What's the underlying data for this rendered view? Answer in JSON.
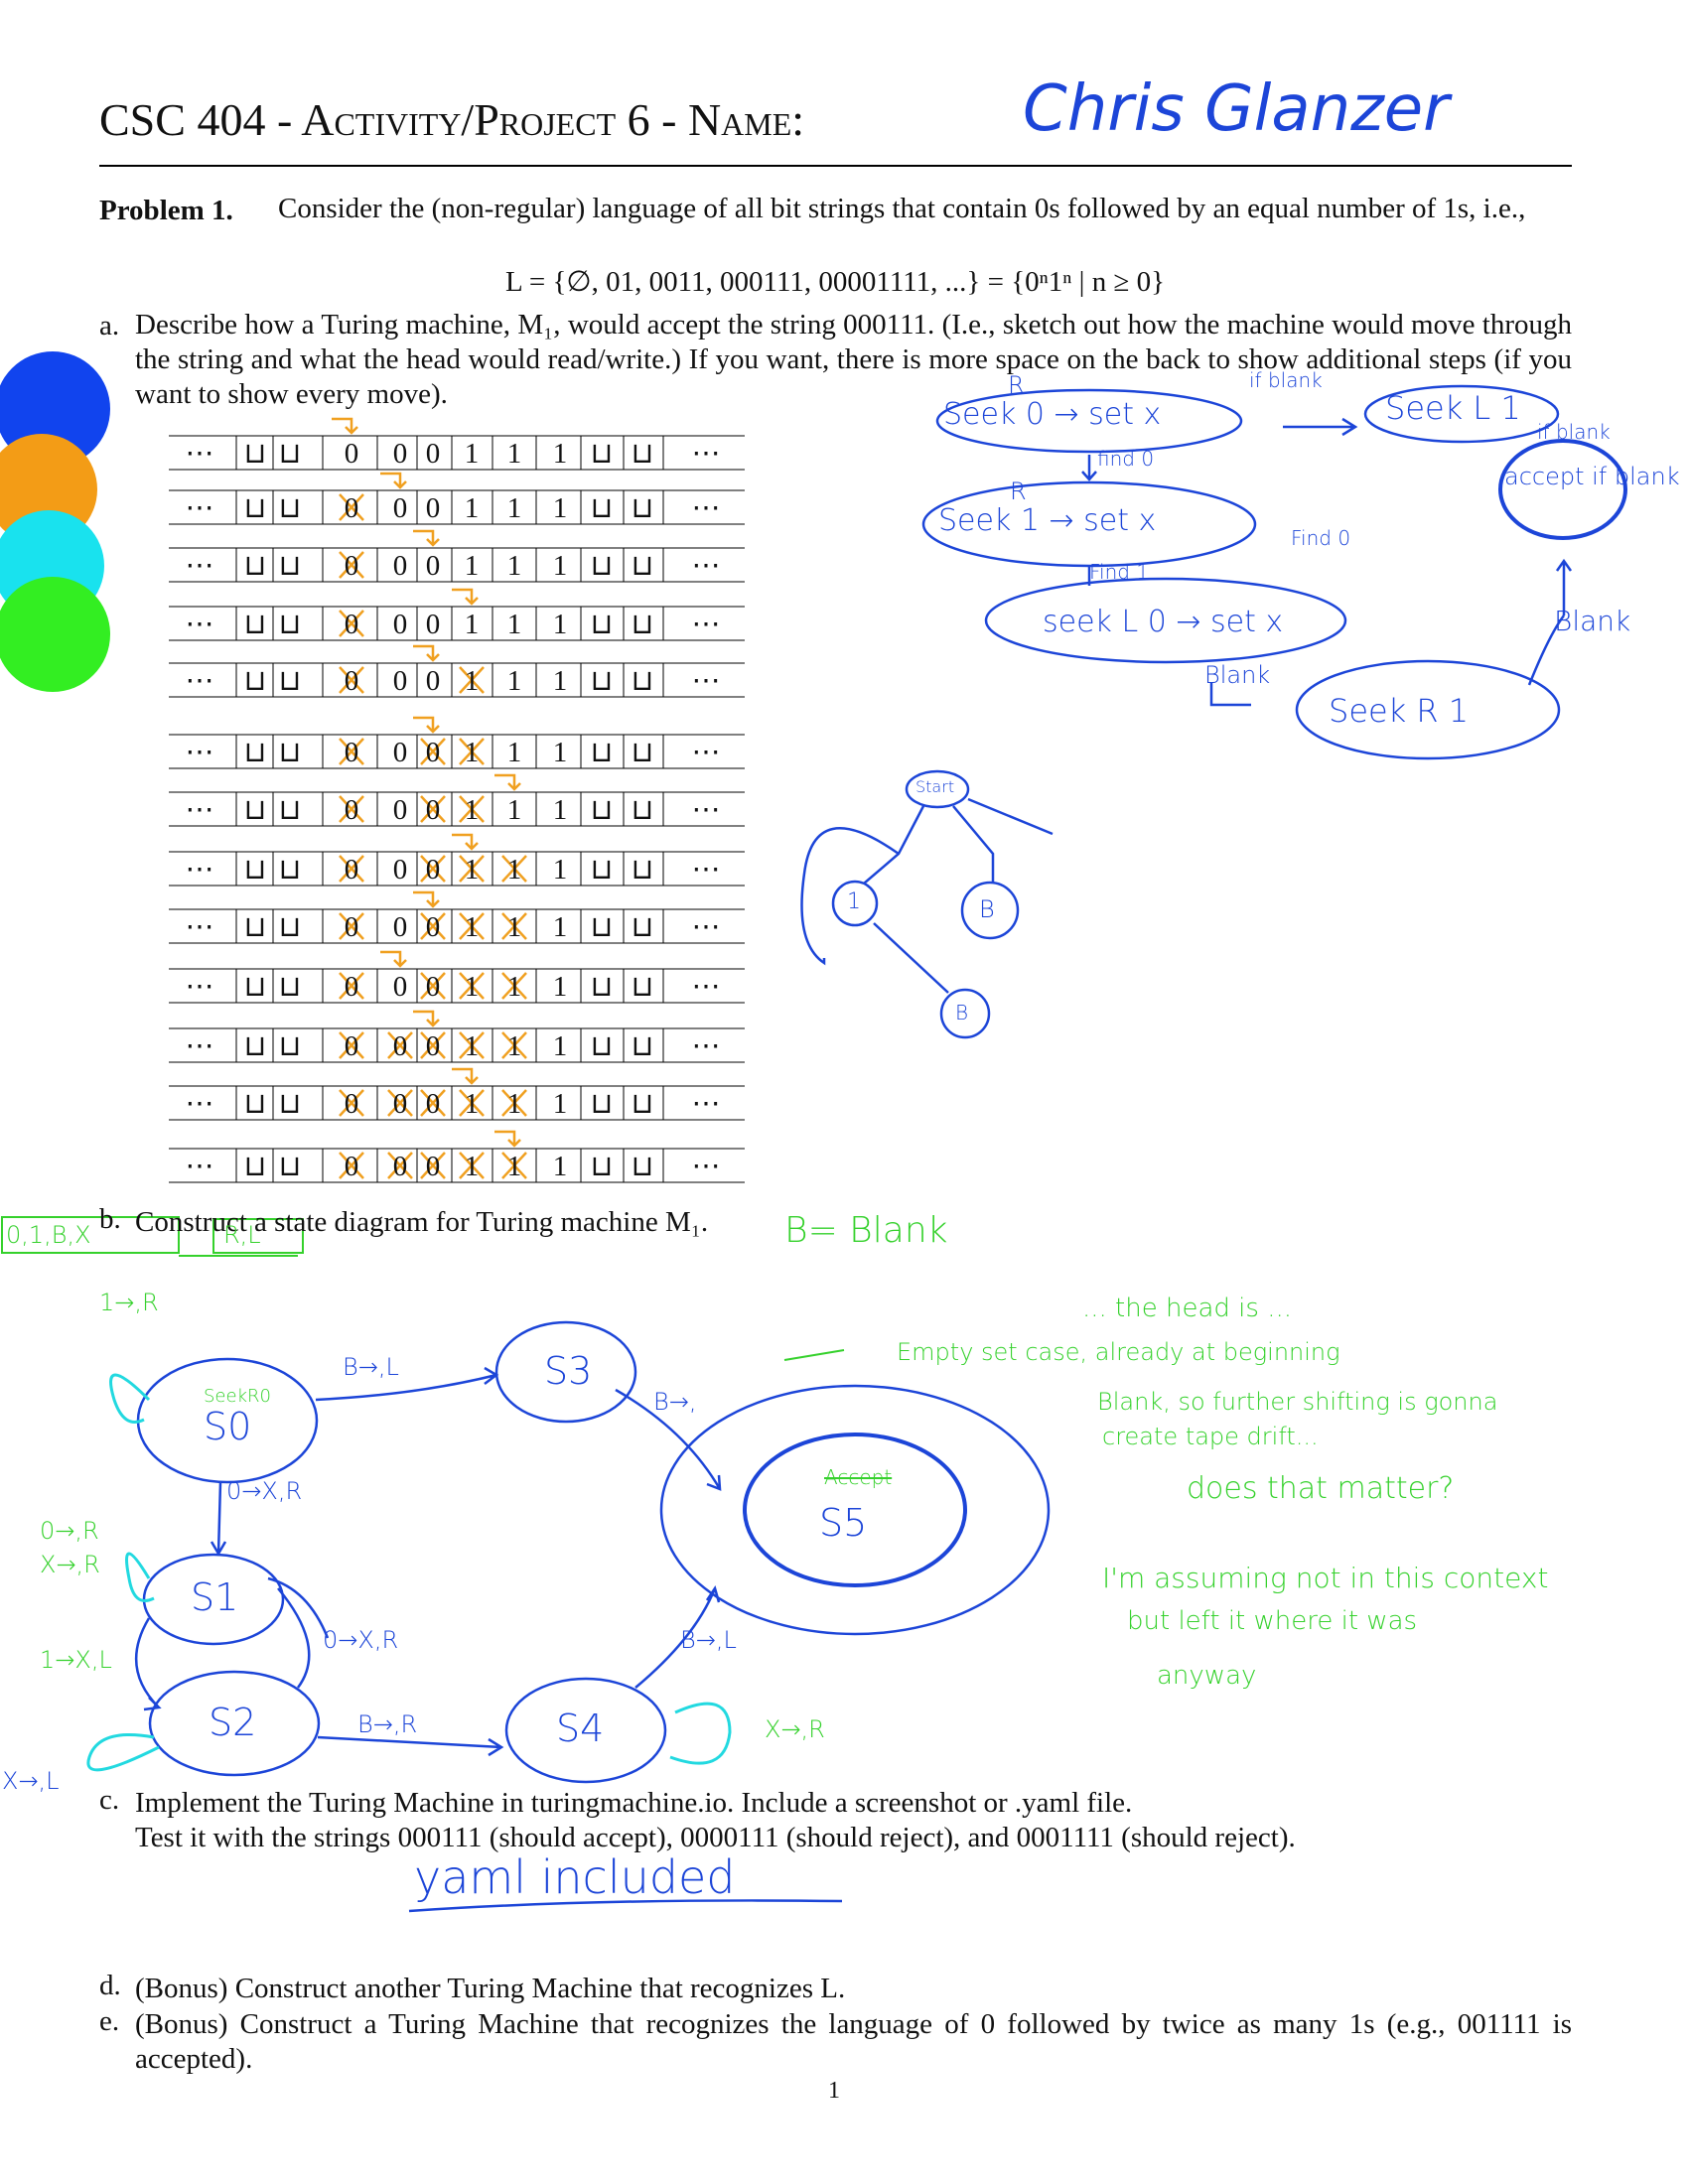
{
  "header": {
    "title": "CSC 404 - Activity/Project 6 - Name:",
    "name": "Chris Glanzer"
  },
  "problem": {
    "label": "Problem 1.",
    "text": "Consider the (non-regular) language of all bit strings that contain 0s followed by an equal number of 1s, i.e.,",
    "formula": "L = {∅, 01, 0011, 000111, 00001111, ...} = {0ⁿ1ⁿ | n ≥ 0}"
  },
  "parts": [
    {
      "label": "a.",
      "lines": [
        "Describe how a Turing machine, M₁, would accept the string 000111. (I.e., sketch out how the machine would move through the string and what the head would read/write.) If you want, there is more space on the back to show additional steps (if you want to show every move)."
      ]
    },
    {
      "label": "b.",
      "lines": [
        "Construct a state diagram for Turing machine M₁."
      ]
    },
    {
      "label": "c.",
      "lines": [
        "Implement the Turing Machine in turingmachine.io. Include a screenshot or .yaml file.",
        "Test it with the strings 000111 (should accept), 0000111 (should reject), and 0001111 (should reject)."
      ]
    },
    {
      "label": "d.",
      "lines": [
        "(Bonus) Construct another Turing Machine that recognizes L."
      ]
    },
    {
      "label": "e.",
      "lines": [
        "(Bonus) Construct a Turing Machine that recognizes the language of 0 followed by twice as many 1s (e.g., 001111 is accepted)."
      ]
    }
  ],
  "tape": {
    "cells": [
      "⋯",
      "⊔",
      "⊔",
      "0",
      "0",
      "0",
      "1",
      "1",
      "1",
      "⊔",
      "⊔",
      "⋯"
    ]
  },
  "sketch": {
    "top": [
      "Seek 0 → set x",
      "R",
      "Seek L 1",
      "if blank",
      "find 0",
      "if blank",
      "accept if blank",
      "Seek 1 → set x",
      "R",
      "Find 0",
      "Find 1",
      "seek L 0 → set x",
      "Blank",
      "Blank",
      "Seek R 1"
    ],
    "tree": [
      "Start",
      "1",
      "B",
      "B"
    ]
  },
  "state_diagram": {
    "legend": [
      "0,1,B,X",
      "R,L",
      "B= Blank"
    ],
    "states": [
      "S0",
      "S3",
      "S1",
      "S2",
      "S4",
      "S5"
    ],
    "state_notes": [
      "SeekR0",
      "Accept"
    ],
    "transitions": [
      "1→,R",
      "0→X,R",
      "0→,R",
      "X→,R",
      "1→X,L",
      "0→X,R",
      "B→,L",
      "B→,",
      "B→,L",
      "B→,R",
      "X→,R",
      "X→,L"
    ]
  },
  "notes": [
    "... the head is ...",
    "Empty set case, already at beginning",
    "Blank, so further shifting is gonna",
    "create tape drift...",
    "does that matter?",
    "I'm assuming not in this context",
    "but left it where it was",
    "anyway"
  ],
  "answer_c": "yaml included",
  "page_number": "1"
}
